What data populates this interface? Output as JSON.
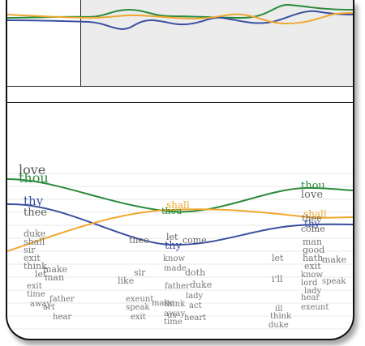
{
  "colors": {
    "thou": "#2a8a3a",
    "thy": "#3a4fa0",
    "shall": "#f0a830",
    "word_gray": "#777777"
  },
  "overview": {
    "series": [
      {
        "key": "thou",
        "color": "#2a8a3a"
      },
      {
        "key": "thy",
        "color": "#3a4fa0"
      },
      {
        "key": "shall",
        "color": "#f0a830"
      }
    ]
  },
  "main": {
    "series_labels": {
      "left": [
        {
          "text": "love",
          "color": "#555555"
        },
        {
          "text": "thou",
          "color": "#2a8a3a"
        },
        {
          "text": "thy",
          "color": "#3a4fa0"
        },
        {
          "text": "thee",
          "color": "#555555"
        }
      ],
      "middle": [
        {
          "text": "shall",
          "color": "#f0a830"
        },
        {
          "text": "thou",
          "color": "#2a8a3a"
        },
        {
          "text": "thee",
          "color": "#666666"
        },
        {
          "text": "let",
          "color": "#666666"
        },
        {
          "text": "thy",
          "color": "#3a4fa0"
        },
        {
          "text": "come",
          "color": "#666666"
        }
      ],
      "right": [
        {
          "text": "thou",
          "color": "#2a8a3a"
        },
        {
          "text": "love",
          "color": "#666666"
        },
        {
          "text": "shall",
          "color": "#f0a830"
        },
        {
          "text": "thee",
          "color": "#666666"
        },
        {
          "text": "thy",
          "color": "#3a4fa0"
        },
        {
          "text": "come",
          "color": "#666666"
        }
      ]
    },
    "words_left": [
      "duke",
      "shall",
      "sir",
      "exit",
      "think",
      "let",
      "exit",
      "time",
      "make",
      "man",
      "father",
      "art",
      "away",
      "hear"
    ],
    "words_mid": [
      "like",
      "sir",
      "exeunt",
      "speak",
      "make",
      "father",
      "think",
      "away",
      "us",
      "time",
      "doth",
      "duke",
      "lady",
      "act",
      "heart",
      "exit",
      "know",
      "made"
    ],
    "words_right": [
      "let",
      "i'll",
      "man",
      "good",
      "hath",
      "exit",
      "make",
      "know",
      "lord",
      "hear",
      "lady",
      "speak",
      "exeunt",
      "ill",
      "think",
      "duke"
    ]
  }
}
